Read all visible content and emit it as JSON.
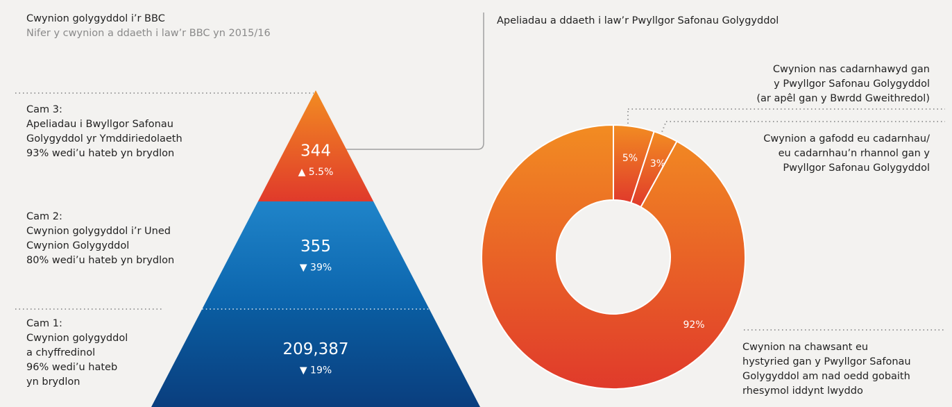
{
  "chart_data": [
    {
      "type": "pyramid",
      "title": "Cwynion golygyddol i’r BBC",
      "subtitle": "Nifer y cwynion a ddaeth i law’r BBC yn 2015/16",
      "categories": [
        "Cam 3:",
        "Cam 2:",
        "Cam 1:"
      ],
      "descriptions": [
        [
          "Apeliadau i Bwyllgor Safonau",
          "Golygyddol yr Ymddiriedolaeth"
        ],
        [
          "Cwynion golygyddol i’r Uned",
          "Cwynion Golygyddol"
        ],
        [
          "Cwynion golygyddol",
          "a chyffredinol"
        ]
      ],
      "notes": [
        [
          "93% wedi’u hateb yn brydlon"
        ],
        [
          "80% wedi’u hateb yn brydlon"
        ],
        [
          "96% wedi’u hateb",
          "yn brydlon"
        ]
      ],
      "values": [
        344,
        355,
        209387
      ],
      "value_labels": [
        "344",
        "355",
        "209,387"
      ],
      "changes": [
        5.5,
        -39,
        -19
      ],
      "change_labels": [
        "▲ 5.5%",
        "▼ 39%",
        "▼ 19%"
      ],
      "colors": [
        [
          "#f28c22",
          "#e03a2b"
        ],
        [
          "#1f84c9",
          "#0b63ab"
        ],
        [
          "#0a5ca0",
          "#0a3e7e"
        ]
      ]
    },
    {
      "type": "donut",
      "title": "Apeliadau a ddaeth i law’r Pwyllgor Safonau Golygyddol",
      "categories": [
        [
          "Cwynion nas cadarnhawyd gan",
          "y Pwyllgor Safonau Golygyddol",
          "(ar apêl gan y Bwrdd Gweithredol)"
        ],
        [
          "Cwynion a gafodd eu cadarnhau/",
          "eu cadarnhau’n rhannol gan y",
          "Pwyllgor Safonau Golygyddol"
        ],
        [
          "Cwynion na chawsant eu",
          "hystyried gan y Pwyllgor Safonau",
          "Golygyddol am nad oedd gobaith",
          "rhesymol iddynt lwyddo"
        ]
      ],
      "values": [
        5,
        3,
        92
      ],
      "value_labels": [
        "5%",
        "3%",
        "92%"
      ],
      "colors": [
        "#f28c22",
        "#e03a2b"
      ]
    }
  ]
}
